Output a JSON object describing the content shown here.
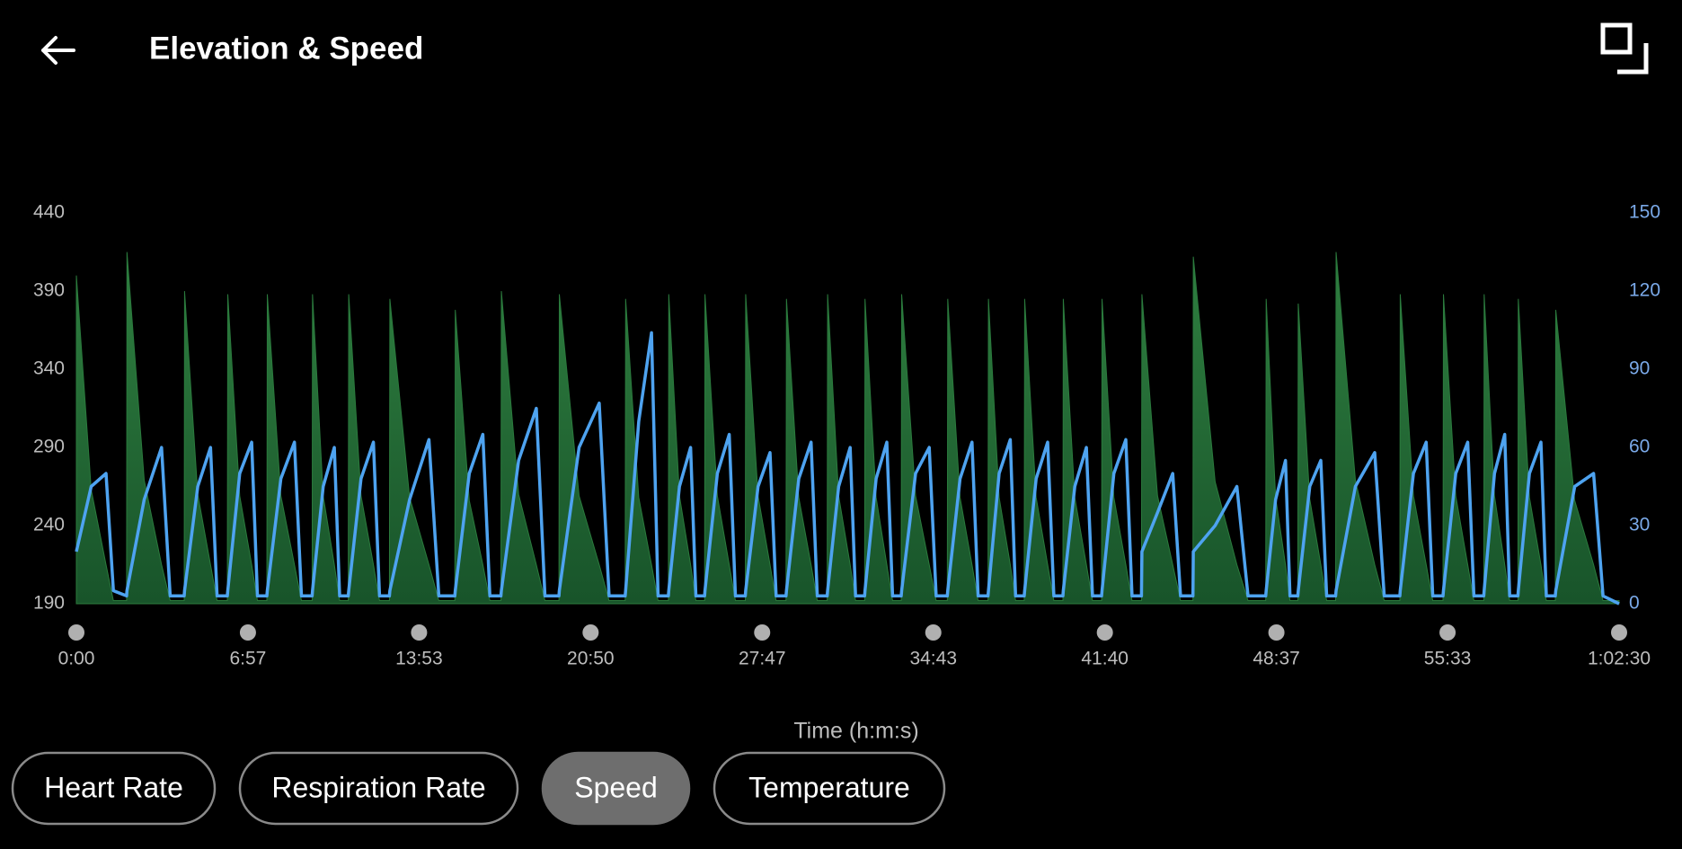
{
  "header": {
    "title": "Elevation & Speed"
  },
  "chart_data": {
    "type": "area-line",
    "xlabel": "Time (h:m:s)",
    "x": [
      0,
      36,
      72,
      90,
      122,
      123,
      165,
      207,
      228,
      262,
      263,
      295,
      326,
      342,
      367,
      368,
      397,
      426,
      440,
      463,
      464,
      497,
      530,
      547,
      573,
      574,
      600,
      627,
      640,
      661,
      662,
      692,
      722,
      737,
      761,
      762,
      810,
      857,
      881,
      920,
      921,
      955,
      988,
      1005,
      1032,
      1033,
      1075,
      1118,
      1139,
      1173,
      1174,
      1222,
      1271,
      1295,
      1334,
      1335,
      1367,
      1398,
      1414,
      1439,
      1440,
      1466,
      1493,
      1506,
      1527,
      1528,
      1558,
      1587,
      1602,
      1626,
      1627,
      1657,
      1686,
      1701,
      1725,
      1726,
      1756,
      1786,
      1801,
      1825,
      1826,
      1853,
      1881,
      1894,
      1916,
      1917,
      1944,
      1970,
      1984,
      2005,
      2006,
      2040,
      2073,
      2090,
      2117,
      2118,
      2148,
      2177,
      2192,
      2216,
      2217,
      2243,
      2270,
      2283,
      2304,
      2305,
      2333,
      2361,
      2376,
      2398,
      2399,
      2427,
      2455,
      2470,
      2492,
      2493,
      2522,
      2551,
      2566,
      2589,
      2590,
      2628,
      2665,
      2684,
      2714,
      2715,
      2768,
      2821,
      2848,
      2891,
      2892,
      2915,
      2939,
      2950,
      2969,
      2970,
      2998,
      3025,
      3039,
      3061,
      3062,
      3109,
      3156,
      3179,
      3217,
      3218,
      3250,
      3281,
      3297,
      3322,
      3323,
      3353,
      3382,
      3397,
      3421,
      3422,
      3447,
      3472,
      3484,
      3504,
      3505,
      3532,
      3560,
      3573,
      3595,
      3596,
      3642,
      3688,
      3711,
      3750
    ],
    "series": [
      {
        "color": "#2b7a3d",
        "values": [
          400,
          263,
          215,
          192,
          192,
          415,
          269,
          215,
          192,
          192,
          390,
          260,
          215,
          192,
          192,
          388,
          259,
          215,
          192,
          192,
          388,
          259,
          215,
          192,
          192,
          388,
          259,
          215,
          192,
          192,
          388,
          259,
          215,
          192,
          192,
          385,
          258,
          215,
          192,
          192,
          378,
          256,
          215,
          192,
          192,
          390,
          260,
          215,
          192,
          192,
          388,
          259,
          215,
          192,
          192,
          385,
          258,
          215,
          192,
          192,
          388,
          259,
          215,
          192,
          192,
          388,
          259,
          215,
          192,
          192,
          388,
          259,
          215,
          192,
          192,
          385,
          258,
          215,
          192,
          192,
          388,
          259,
          215,
          192,
          192,
          385,
          258,
          215,
          192,
          192,
          388,
          259,
          215,
          192,
          192,
          385,
          258,
          215,
          192,
          192,
          385,
          258,
          215,
          192,
          192,
          385,
          258,
          215,
          192,
          192,
          385,
          258,
          215,
          192,
          192,
          385,
          258,
          215,
          192,
          192,
          388,
          259,
          215,
          192,
          192,
          412,
          268,
          215,
          192,
          192,
          385,
          258,
          215,
          192,
          192,
          382,
          257,
          215,
          192,
          192,
          415,
          269,
          215,
          192,
          192,
          388,
          259,
          215,
          192,
          192,
          388,
          259,
          215,
          192,
          192,
          388,
          259,
          215,
          192,
          192,
          385,
          258,
          215,
          192,
          192,
          378,
          256,
          215,
          192,
          192
        ]
      },
      {
        "color": "#4ea3f0",
        "axis": "y2",
        "values": [
          20,
          45,
          50,
          5,
          3,
          5,
          40,
          60,
          3,
          3,
          5,
          45,
          60,
          3,
          3,
          5,
          50,
          62,
          3,
          3,
          5,
          48,
          62,
          3,
          3,
          5,
          45,
          60,
          3,
          3,
          5,
          48,
          62,
          3,
          3,
          5,
          40,
          63,
          3,
          3,
          5,
          50,
          65,
          3,
          3,
          5,
          55,
          75,
          3,
          3,
          5,
          60,
          77,
          3,
          3,
          5,
          70,
          104,
          3,
          3,
          5,
          45,
          60,
          3,
          3,
          5,
          50,
          65,
          3,
          3,
          5,
          45,
          58,
          3,
          3,
          5,
          48,
          62,
          3,
          3,
          5,
          45,
          60,
          3,
          3,
          5,
          48,
          62,
          3,
          3,
          5,
          50,
          60,
          3,
          3,
          5,
          48,
          62,
          3,
          3,
          5,
          50,
          63,
          3,
          3,
          5,
          48,
          62,
          3,
          3,
          5,
          45,
          60,
          3,
          3,
          5,
          50,
          63,
          3,
          3,
          20,
          35,
          50,
          3,
          3,
          20,
          30,
          45,
          3,
          3,
          5,
          40,
          55,
          3,
          3,
          5,
          45,
          55,
          3,
          3,
          5,
          45,
          58,
          3,
          3,
          5,
          50,
          62,
          3,
          3,
          5,
          50,
          62,
          3,
          3,
          5,
          50,
          65,
          3,
          3,
          5,
          50,
          62,
          3,
          3,
          5,
          45,
          50,
          3,
          0
        ]
      }
    ],
    "xlim": [
      0,
      3750
    ],
    "xticks": [
      {
        "value": 0,
        "label": "0:00"
      },
      {
        "value": 417,
        "label": "6:57"
      },
      {
        "value": 833,
        "label": "13:53"
      },
      {
        "value": 1250,
        "label": "20:50"
      },
      {
        "value": 1667,
        "label": "27:47"
      },
      {
        "value": 2083,
        "label": "34:43"
      },
      {
        "value": 2500,
        "label": "41:40"
      },
      {
        "value": 2917,
        "label": "48:37"
      },
      {
        "value": 3333,
        "label": "55:33"
      },
      {
        "value": 3750,
        "label": "1:02:30"
      }
    ],
    "ylim": [
      190,
      440
    ],
    "yticks": [
      190,
      240,
      290,
      340,
      390,
      440
    ],
    "y2lim": [
      0,
      150
    ],
    "y2ticks": [
      0,
      30,
      60,
      90,
      120,
      150
    ]
  },
  "buttons": [
    {
      "label": "Heart Rate"
    },
    {
      "label": "Respiration Rate"
    },
    {
      "label": "Speed",
      "selected": true
    },
    {
      "label": "Temperature"
    }
  ]
}
